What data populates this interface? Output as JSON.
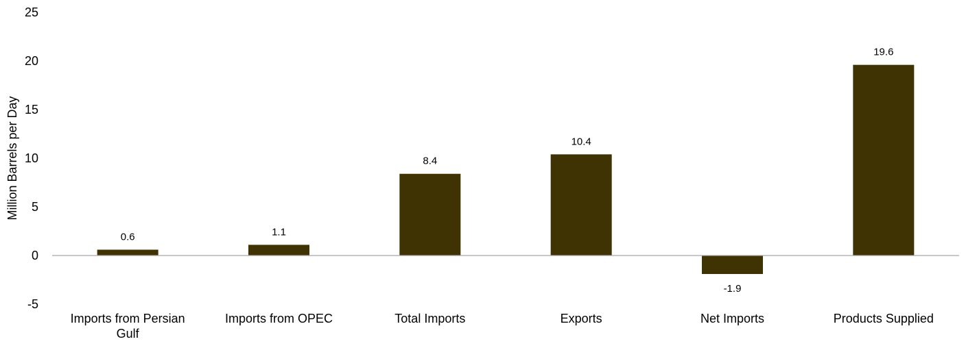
{
  "chart_data": {
    "type": "bar",
    "title": "",
    "xlabel": "",
    "ylabel": "Million Barrels per Day",
    "categories": [
      "Imports from Persian Gulf",
      "Imports from OPEC",
      "Total Imports",
      "Exports",
      "Net Imports",
      "Products Supplied"
    ],
    "values": [
      0.6,
      1.1,
      8.4,
      10.4,
      -1.9,
      19.6
    ],
    "data_labels": [
      "0.6",
      "1.1",
      "8.4",
      "10.4",
      "-1.9",
      "19.6"
    ],
    "ylim": [
      -5,
      25
    ],
    "yticks": [
      -5,
      0,
      5,
      10,
      15,
      20,
      25
    ],
    "ytick_labels": [
      "-5",
      "0",
      "5",
      "10",
      "15",
      "20",
      "25"
    ],
    "grid": false,
    "legend": "none",
    "colors": {
      "bar": "#3f3203",
      "zero_line": "#a6a6a6",
      "text": "#000000"
    }
  }
}
